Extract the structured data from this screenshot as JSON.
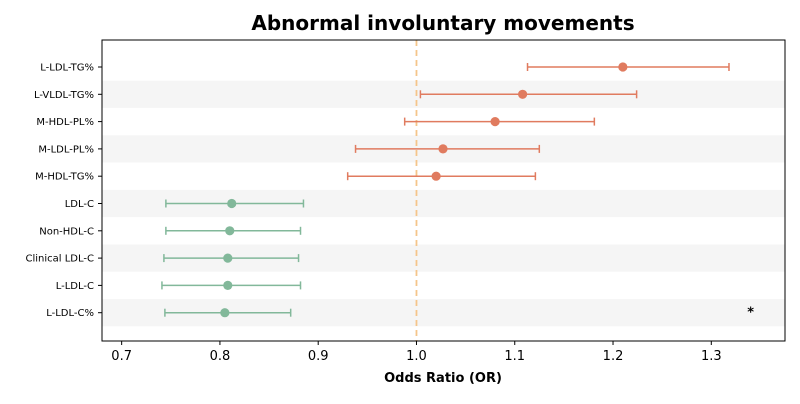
{
  "chart_data": {
    "type": "forest",
    "title": "Abnormal involuntary movements",
    "xlabel": "Odds Ratio (OR)",
    "ylabel": "",
    "xlim": [
      0.68,
      1.375
    ],
    "x_ticks": [
      0.7,
      0.8,
      0.9,
      1.0,
      1.1,
      1.2,
      1.3
    ],
    "x_tick_labels": [
      "0.7",
      "0.8",
      "0.9",
      "1.0",
      "1.1",
      "1.2",
      "1.3"
    ],
    "reference_line": 1.0,
    "grid": false,
    "row_shading": "alternating",
    "colors": {
      "positive": "#e07b5f",
      "negative": "#82b89a",
      "reference": "#f5c58a",
      "row_shade": "#f5f5f5"
    },
    "items": [
      {
        "label": "L-LDL-TG%",
        "or": 1.21,
        "ci_low": 1.113,
        "ci_high": 1.318,
        "group": "positive"
      },
      {
        "label": "L-VLDL-TG%",
        "or": 1.108,
        "ci_low": 1.004,
        "ci_high": 1.224,
        "group": "positive"
      },
      {
        "label": "M-HDL-PL%",
        "or": 1.08,
        "ci_low": 0.988,
        "ci_high": 1.181,
        "group": "positive"
      },
      {
        "label": "M-LDL-PL%",
        "or": 1.027,
        "ci_low": 0.938,
        "ci_high": 1.125,
        "group": "positive"
      },
      {
        "label": "M-HDL-TG%",
        "or": 1.02,
        "ci_low": 0.93,
        "ci_high": 1.121,
        "group": "positive"
      },
      {
        "label": "LDL-C",
        "or": 0.812,
        "ci_low": 0.745,
        "ci_high": 0.885,
        "group": "negative"
      },
      {
        "label": "Non-HDL-C",
        "or": 0.81,
        "ci_low": 0.745,
        "ci_high": 0.882,
        "group": "negative"
      },
      {
        "label": "Clinical LDL-C",
        "or": 0.808,
        "ci_low": 0.743,
        "ci_high": 0.88,
        "group": "negative"
      },
      {
        "label": "L-LDL-C",
        "or": 0.808,
        "ci_low": 0.741,
        "ci_high": 0.882,
        "group": "negative"
      },
      {
        "label": "L-LDL-C%",
        "or": 0.805,
        "ci_low": 0.744,
        "ci_high": 0.872,
        "group": "negative"
      }
    ],
    "annotations": [
      {
        "text": "*",
        "row": "L-LDL-C%",
        "x": 1.34
      }
    ]
  }
}
